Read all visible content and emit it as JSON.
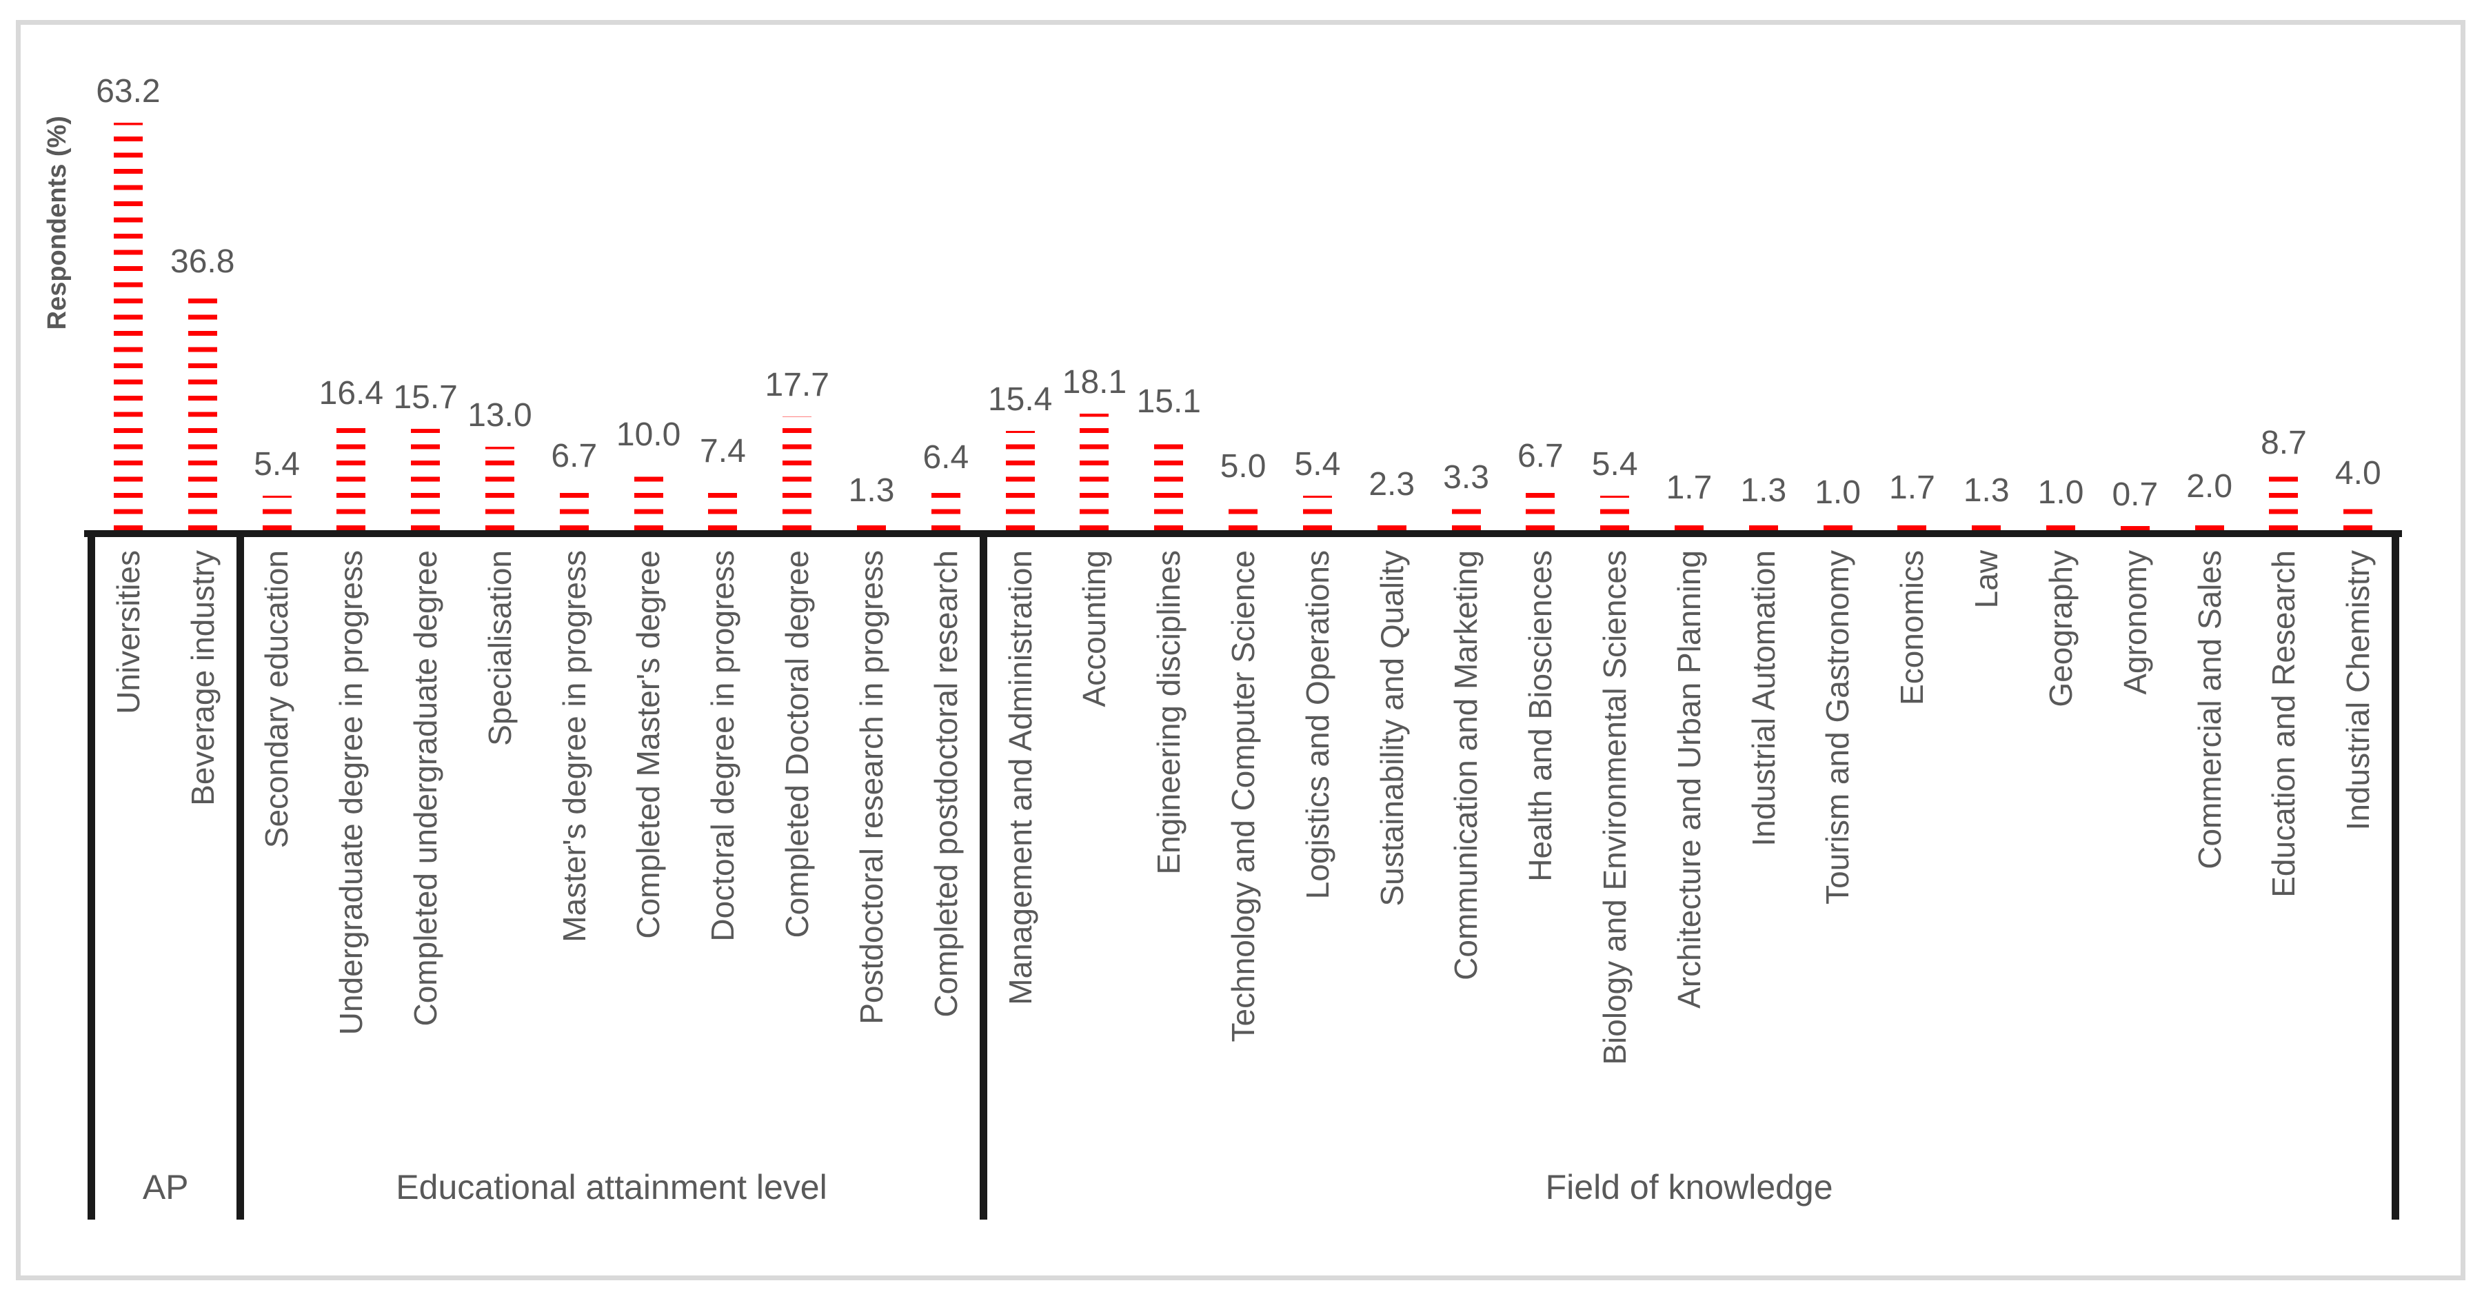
{
  "chart_data": {
    "type": "bar",
    "title": "",
    "xlabel": "",
    "ylabel": "Respondents (%)",
    "grid": false,
    "legend": null,
    "value_labels_shown": true,
    "value_label_format": "one-decimal",
    "bar_color": "#ff0000",
    "bar_fill_style": "stacked horizontal red dashes",
    "text_color": "#595959",
    "line_color": "#1a1a1a",
    "frame_color": "#d9d9d9",
    "groups": [
      {
        "label": "AP",
        "categories": [
          "Universities",
          "Beverage industry"
        ],
        "values": [
          63.2,
          36.8
        ]
      },
      {
        "label": "Educational attainment level",
        "categories": [
          "Secondary education",
          "Undergraduate degree in progress",
          "Completed undergraduate degree",
          "Specialisation",
          "Master's degree in progress",
          "Completed Master's degree",
          "Doctoral degree in progress",
          "Completed Doctoral degree",
          "Postdoctoral research in progress",
          "Completed postdoctoral research"
        ],
        "values": [
          5.4,
          16.4,
          15.7,
          13.0,
          6.7,
          10.0,
          7.4,
          17.7,
          1.3,
          6.4
        ]
      },
      {
        "label": "Field of knowledge",
        "categories": [
          "Management and Administration",
          "Accounting",
          "Engineering disciplines",
          "Technology and Computer Science",
          "Logistics and Operations",
          "Sustainability and Quality",
          "Communication and Marketing",
          "Health and Biosciences",
          "Biology and Environmental Sciences",
          "Architecture and Urban Planning",
          "Industrial Automation",
          "Tourism and Gastronomy",
          "Economics",
          "Law",
          "Geography",
          "Agronomy",
          "Commercial and Sales",
          "Education and Research",
          "Industrial Chemistry"
        ],
        "values": [
          15.4,
          18.1,
          15.1,
          5.0,
          5.4,
          2.3,
          3.3,
          6.7,
          5.4,
          1.7,
          1.3,
          1.0,
          1.7,
          1.3,
          1.0,
          0.7,
          2.0,
          8.7,
          4.0
        ]
      }
    ]
  }
}
